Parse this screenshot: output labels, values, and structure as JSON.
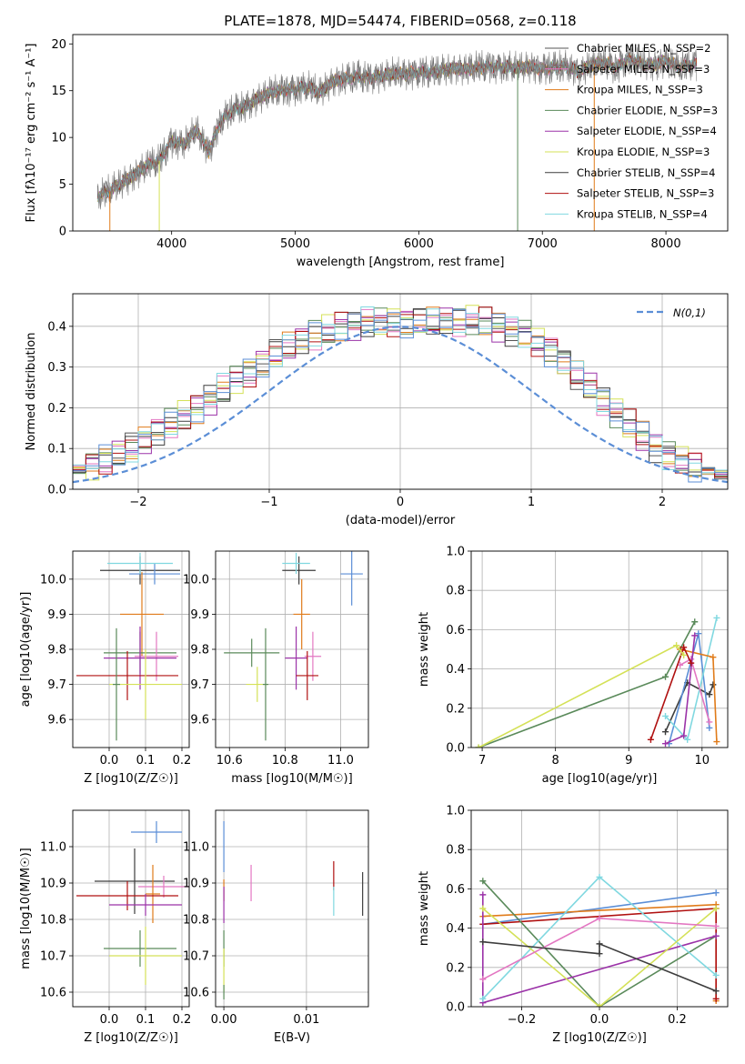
{
  "figure": {
    "title": "PLATE=1878, MJD=54474, FIBERID=0568, z=0.118"
  },
  "chart_data": [
    {
      "id": "spectrum",
      "type": "line",
      "title": "PLATE=1878, MJD=54474, FIBERID=0568, z=0.118",
      "xlabel": "wavelength [Angstrom, rest frame]",
      "ylabel": "Flux [fλ10⁻¹⁷ erg cm⁻² s⁻¹ A⁻¹]",
      "xlim": [
        3200,
        8500
      ],
      "ylim": [
        0,
        21
      ],
      "xticks": [
        4000,
        5000,
        6000,
        7000,
        8000
      ],
      "yticks": [
        0,
        5,
        10,
        15,
        20
      ],
      "grid": false,
      "legend_position": "right",
      "data_curve": {
        "x": [
          3400,
          3500,
          3600,
          3700,
          3800,
          3900,
          4000,
          4100,
          4200,
          4300,
          4400,
          4500,
          4600,
          4700,
          4800,
          4900,
          5000,
          5100,
          5200,
          5300,
          5400,
          5500,
          5600,
          5700,
          5800,
          5900,
          6000,
          6100,
          6200,
          6300,
          6400,
          6500,
          6600,
          6700,
          6800,
          6900,
          7000,
          7100,
          7200,
          7300,
          7400,
          7500,
          7600,
          7700,
          7800,
          7900,
          8000,
          8100,
          8200,
          8250
        ],
        "y": [
          3.8,
          4.3,
          5.2,
          6.0,
          7.0,
          7.5,
          9.6,
          9.3,
          10.8,
          8.5,
          11.8,
          13.0,
          13.3,
          14.2,
          14.8,
          15.0,
          15.2,
          15.4,
          14.8,
          16.0,
          16.3,
          16.5,
          16.4,
          16.6,
          16.8,
          16.8,
          17.0,
          16.9,
          17.2,
          17.4,
          17.3,
          17.5,
          17.6,
          17.5,
          17.4,
          17.6,
          17.3,
          17.5,
          17.6,
          17.0,
          17.8,
          18.0,
          17.5,
          18.4,
          17.9,
          17.7,
          18.2,
          17.5,
          17.8,
          17.9
        ]
      },
      "series": [
        {
          "name": "Chabrier MILES, N_SSP=2",
          "color": "#555555"
        },
        {
          "name": "Salpeter MILES, N_SSP=3",
          "color": "#e377c2"
        },
        {
          "name": "Kroupa MILES, N_SSP=3",
          "color": "#e07b1a"
        },
        {
          "name": "Chabrier ELODIE, N_SSP=3",
          "color": "#5a8a5a"
        },
        {
          "name": "Salpeter ELODIE, N_SSP=4",
          "color": "#9b32a8"
        },
        {
          "name": "Kroupa ELODIE, N_SSP=3",
          "color": "#d4e157"
        },
        {
          "name": "Chabrier STELIB, N_SSP=4",
          "color": "#3d3d3d"
        },
        {
          "name": "Salpeter STELIB, N_SSP=3",
          "color": "#b01010"
        },
        {
          "name": "Kroupa STELIB, N_SSP=4",
          "color": "#80d8e0"
        }
      ]
    },
    {
      "id": "residuals",
      "type": "line",
      "xlabel": "(data-model)/error",
      "ylabel": "Normed distribution",
      "xlim": [
        -2.5,
        2.5
      ],
      "ylim": [
        0,
        0.48
      ],
      "xticks": [
        -2,
        -1,
        0,
        1,
        2
      ],
      "yticks": [
        0.0,
        0.1,
        0.2,
        0.3,
        0.4
      ],
      "grid": true,
      "legend_position": "upper right",
      "gaussian_label": "N(0,1)",
      "gaussian_color": "#5b8ed6",
      "bin_width": 0.1,
      "histogram_base": [
        0.02,
        0.022,
        0.025,
        0.03,
        0.038,
        0.048,
        0.06,
        0.074,
        0.088,
        0.1,
        0.12,
        0.14,
        0.16,
        0.18,
        0.2,
        0.22,
        0.245,
        0.27,
        0.29,
        0.31,
        0.33,
        0.35,
        0.365,
        0.38,
        0.39,
        0.4,
        0.405,
        0.41,
        0.41,
        0.412,
        0.41,
        0.41,
        0.41,
        0.412,
        0.415,
        0.415,
        0.41,
        0.4,
        0.39,
        0.38,
        0.36,
        0.34,
        0.31,
        0.28,
        0.25,
        0.22,
        0.19,
        0.16,
        0.13,
        0.105,
        0.085,
        0.068,
        0.055,
        0.045,
        0.037,
        0.03,
        0.025,
        0.022,
        0.02,
        0.018
      ]
    },
    {
      "id": "age-vs-z",
      "type": "scatter",
      "xlabel": "Z [log10(Z/Z☉)]",
      "ylabel": "age  [log10(age/yr)]",
      "xlim": [
        -0.1,
        0.22
      ],
      "ylim": [
        9.52,
        10.08
      ],
      "xticks": [
        0.0,
        0.1,
        0.2
      ],
      "yticks": [
        9.6,
        9.7,
        9.8,
        9.9,
        10.0
      ],
      "grid": true,
      "points": [
        {
          "x": 0.085,
          "y": 10.025,
          "xerr": 0.11,
          "yerr": 0.04,
          "color": "#3d3d3d"
        },
        {
          "x": 0.125,
          "y": 10.015,
          "xerr": 0.07,
          "yerr": 0.03,
          "color": "#5b8ed6"
        },
        {
          "x": 0.085,
          "y": 10.045,
          "xerr": 0.09,
          "yerr": 0.03,
          "color": "#80d8e0"
        },
        {
          "x": 0.09,
          "y": 9.9,
          "xerr": 0.06,
          "yerr": 0.12,
          "color": "#e07b1a"
        },
        {
          "x": 0.085,
          "y": 9.79,
          "xerr": 0.1,
          "yerr": 0.06,
          "color": "#5a8a5a"
        },
        {
          "x": 0.13,
          "y": 9.78,
          "xerr": 0.06,
          "yerr": 0.07,
          "color": "#e377c2"
        },
        {
          "x": 0.085,
          "y": 9.775,
          "xerr": 0.1,
          "yerr": 0.09,
          "color": "#9b32a8"
        },
        {
          "x": 0.05,
          "y": 9.725,
          "xerr": 0.14,
          "yerr": 0.07,
          "color": "#b01010"
        },
        {
          "x": 0.1,
          "y": 9.7,
          "xerr": 0.1,
          "yerr": 0.1,
          "color": "#d4e157"
        },
        {
          "x": 0.02,
          "y": 9.7,
          "xerr": 0.01,
          "yerr": 0.16,
          "color": "#5a8a5a"
        }
      ]
    },
    {
      "id": "age-vs-mass",
      "type": "scatter",
      "xlabel": "mass [log10(M/M☉)]",
      "xlim": [
        10.55,
        11.1
      ],
      "ylim": [
        9.52,
        10.08
      ],
      "xticks": [
        10.6,
        10.8,
        11.0
      ],
      "yticks": [
        9.6,
        9.7,
        9.8,
        9.9,
        10.0
      ],
      "grid": true,
      "points": [
        {
          "x": 10.85,
          "y": 10.025,
          "xerr": 0.06,
          "yerr": 0.04,
          "color": "#3d3d3d"
        },
        {
          "x": 11.04,
          "y": 10.015,
          "xerr": 0.04,
          "yerr": 0.09,
          "color": "#5b8ed6"
        },
        {
          "x": 10.84,
          "y": 10.045,
          "xerr": 0.05,
          "yerr": 0.03,
          "color": "#80d8e0"
        },
        {
          "x": 10.86,
          "y": 9.9,
          "xerr": 0.03,
          "yerr": 0.1,
          "color": "#e07b1a"
        },
        {
          "x": 10.68,
          "y": 9.79,
          "xerr": 0.1,
          "yerr": 0.04,
          "color": "#5a8a5a"
        },
        {
          "x": 10.9,
          "y": 9.78,
          "xerr": 0.03,
          "yerr": 0.07,
          "color": "#e377c2"
        },
        {
          "x": 10.84,
          "y": 9.775,
          "xerr": 0.04,
          "yerr": 0.09,
          "color": "#9b32a8"
        },
        {
          "x": 10.88,
          "y": 9.725,
          "xerr": 0.04,
          "yerr": 0.07,
          "color": "#b01010"
        },
        {
          "x": 10.7,
          "y": 9.7,
          "xerr": 0.04,
          "yerr": 0.05,
          "color": "#d4e157"
        },
        {
          "x": 10.73,
          "y": 9.7,
          "xerr": 0.01,
          "yerr": 0.16,
          "color": "#5a8a5a"
        }
      ]
    },
    {
      "id": "weight-vs-age",
      "type": "line",
      "xlabel": "age  [log10(age/yr)]",
      "ylabel": "mass weight",
      "xlim": [
        6.85,
        10.35
      ],
      "ylim": [
        0.0,
        1.0
      ],
      "xticks": [
        7,
        8,
        9,
        10
      ],
      "yticks": [
        0.0,
        0.2,
        0.4,
        0.6,
        0.8,
        1.0
      ],
      "grid": true,
      "series": [
        {
          "color": "#3d3d3d",
          "x": [
            9.5,
            9.8,
            10.1,
            10.15
          ],
          "y": [
            0.08,
            0.33,
            0.27,
            0.32
          ]
        },
        {
          "color": "#5b8ed6",
          "x": [
            9.55,
            9.95,
            10.1
          ],
          "y": [
            0.02,
            0.58,
            0.1
          ]
        },
        {
          "color": "#80d8e0",
          "x": [
            9.5,
            9.8,
            10.2
          ],
          "y": [
            0.16,
            0.04,
            0.66
          ]
        },
        {
          "color": "#e07b1a",
          "x": [
            9.7,
            10.15,
            10.2
          ],
          "y": [
            0.5,
            0.46,
            0.03
          ]
        },
        {
          "color": "#5a8a5a",
          "x": [
            6.95,
            9.5,
            9.9
          ],
          "y": [
            0.0,
            0.36,
            0.64
          ]
        },
        {
          "color": "#e377c2",
          "x": [
            9.7,
            9.85,
            10.1
          ],
          "y": [
            0.42,
            0.45,
            0.13
          ]
        },
        {
          "color": "#9b32a8",
          "x": [
            9.5,
            9.75,
            9.9
          ],
          "y": [
            0.02,
            0.06,
            0.57
          ]
        },
        {
          "color": "#b01010",
          "x": [
            9.3,
            9.75,
            9.85
          ],
          "y": [
            0.04,
            0.51,
            0.43
          ]
        },
        {
          "color": "#d4e157",
          "x": [
            6.95,
            9.65,
            9.75
          ],
          "y": [
            0.0,
            0.52,
            0.47
          ]
        }
      ]
    },
    {
      "id": "mass-vs-z",
      "type": "scatter",
      "xlabel": "Z [log10(Z/Z☉)]",
      "ylabel": "mass [log10(M/M☉)]",
      "xlim": [
        -0.1,
        0.22
      ],
      "ylim": [
        10.56,
        11.1
      ],
      "xticks": [
        0.0,
        0.1,
        0.2
      ],
      "yticks": [
        10.6,
        10.7,
        10.8,
        10.9,
        11.0
      ],
      "grid": true,
      "points": [
        {
          "x": 0.13,
          "y": 11.04,
          "xerr": 0.07,
          "yerr": 0.03,
          "color": "#5b8ed6"
        },
        {
          "x": 0.07,
          "y": 10.905,
          "xerr": 0.11,
          "yerr": 0.09,
          "color": "#3d3d3d"
        },
        {
          "x": 0.15,
          "y": 10.89,
          "xerr": 0.07,
          "yerr": 0.03,
          "color": "#e377c2"
        },
        {
          "x": 0.12,
          "y": 10.87,
          "xerr": 0.02,
          "yerr": 0.08,
          "color": "#e07b1a"
        },
        {
          "x": 0.05,
          "y": 10.865,
          "xerr": 0.14,
          "yerr": 0.04,
          "color": "#b01010"
        },
        {
          "x": 0.1,
          "y": 10.84,
          "xerr": 0.1,
          "yerr": 0.03,
          "color": "#9b32a8"
        },
        {
          "x": 0.085,
          "y": 10.72,
          "xerr": 0.1,
          "yerr": 0.05,
          "color": "#5a8a5a"
        },
        {
          "x": 0.1,
          "y": 10.7,
          "xerr": 0.1,
          "yerr": 0.08,
          "color": "#d4e157"
        }
      ]
    },
    {
      "id": "mass-vs-ebv",
      "type": "scatter",
      "xlabel": "E(B-V)",
      "xlim": [
        -0.001,
        0.0175
      ],
      "ylim": [
        10.56,
        11.1
      ],
      "xticks": [
        0.0,
        0.01
      ],
      "yticks": [
        10.6,
        10.7,
        10.8,
        10.9,
        11.0
      ],
      "grid": true,
      "points": [
        {
          "x": 0.0,
          "y": 11.0,
          "yerr": 0.07,
          "color": "#5b8ed6"
        },
        {
          "x": 0.0,
          "y": 10.88,
          "yerr": 0.03,
          "color": "#e07b1a"
        },
        {
          "x": 0.0,
          "y": 10.84,
          "yerr": 0.05,
          "color": "#9b32a8"
        },
        {
          "x": 0.0,
          "y": 10.72,
          "yerr": 0.05,
          "color": "#5a8a5a"
        },
        {
          "x": 0.0,
          "y": 10.66,
          "yerr": 0.06,
          "color": "#d4e157"
        },
        {
          "x": 0.0,
          "y": 10.6,
          "yerr": 0.02,
          "color": "#5a8a5a"
        },
        {
          "x": 0.0033,
          "y": 10.9,
          "yerr": 0.05,
          "color": "#e377c2"
        },
        {
          "x": 0.0133,
          "y": 10.92,
          "yerr": 0.04,
          "color": "#b01010"
        },
        {
          "x": 0.0133,
          "y": 10.85,
          "yerr": 0.04,
          "color": "#80d8e0"
        },
        {
          "x": 0.0168,
          "y": 10.87,
          "yerr": 0.06,
          "color": "#3d3d3d"
        }
      ]
    },
    {
      "id": "weight-vs-z",
      "type": "line",
      "xlabel": "Z [log10(Z/Z☉)]",
      "ylabel": "mass weight",
      "xlim": [
        -0.33,
        0.33
      ],
      "ylim": [
        0.0,
        1.0
      ],
      "xticks": [
        -0.2,
        0.0,
        0.2
      ],
      "yticks": [
        0.0,
        0.2,
        0.4,
        0.6,
        0.8,
        1.0
      ],
      "grid": true,
      "series": [
        {
          "color": "#5b8ed6",
          "x": [
            -0.3,
            0.3
          ],
          "y": [
            0.42,
            0.58
          ]
        },
        {
          "color": "#e07b1a",
          "x": [
            -0.3,
            0.3,
            0.3
          ],
          "y": [
            0.46,
            0.52,
            0.03
          ]
        },
        {
          "color": "#b01010",
          "x": [
            -0.3,
            0.3,
            0.3
          ],
          "y": [
            0.42,
            0.5,
            0.04
          ]
        },
        {
          "color": "#5a8a5a",
          "x": [
            -0.3,
            0.0,
            0.3
          ],
          "y": [
            0.64,
            0.0,
            0.36
          ]
        },
        {
          "color": "#9b32a8",
          "x": [
            -0.3,
            -0.3,
            0.3
          ],
          "y": [
            0.57,
            0.02,
            0.36
          ]
        },
        {
          "color": "#80d8e0",
          "x": [
            -0.3,
            0.0,
            0.3
          ],
          "y": [
            0.04,
            0.66,
            0.16
          ]
        },
        {
          "color": "#d4e157",
          "x": [
            -0.3,
            0.0,
            0.3
          ],
          "y": [
            0.5,
            0.0,
            0.5
          ]
        },
        {
          "color": "#e377c2",
          "x": [
            -0.3,
            0.0,
            0.3
          ],
          "y": [
            0.14,
            0.45,
            0.41
          ]
        },
        {
          "color": "#3d3d3d",
          "x": [
            -0.3,
            0.0,
            0.0,
            0.3
          ],
          "y": [
            0.33,
            0.27,
            0.32,
            0.08
          ]
        }
      ]
    }
  ]
}
